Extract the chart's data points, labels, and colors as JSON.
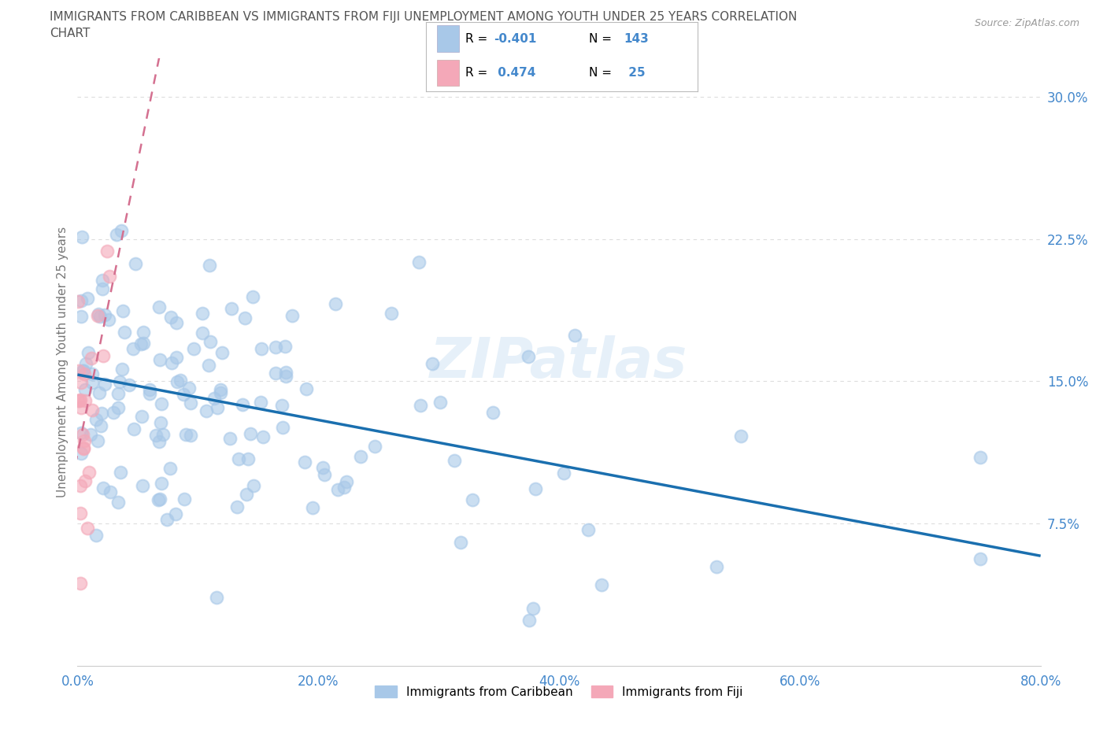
{
  "title_line1": "IMMIGRANTS FROM CARIBBEAN VS IMMIGRANTS FROM FIJI UNEMPLOYMENT AMONG YOUTH UNDER 25 YEARS CORRELATION",
  "title_line2": "CHART",
  "source": "Source: ZipAtlas.com",
  "xlabel_ticks": [
    "0.0%",
    "20.0%",
    "40.0%",
    "60.0%",
    "80.0%"
  ],
  "xlabel_vals": [
    0,
    20,
    40,
    60,
    80
  ],
  "ylabel_ticks": [
    "7.5%",
    "15.0%",
    "22.5%",
    "30.0%"
  ],
  "ylabel_vals": [
    7.5,
    15.0,
    22.5,
    30.0
  ],
  "ylabel_label": "Unemployment Among Youth under 25 years",
  "caribbean_R": -0.401,
  "caribbean_N": 143,
  "fiji_R": 0.474,
  "fiji_N": 25,
  "caribbean_color": "#a8c8e8",
  "fiji_color": "#f4a8b8",
  "trendline_caribbean_color": "#1a6faf",
  "trendline_fiji_color": "#d47090",
  "legend_text_color": "#4488cc",
  "watermark": "ZIPatlas",
  "xlim": [
    0,
    80
  ],
  "ylim": [
    0,
    32
  ],
  "background_color": "#ffffff",
  "grid_color": "#dddddd",
  "title_color": "#555555",
  "axis_color": "#4488cc",
  "ylabel_color": "#777777"
}
